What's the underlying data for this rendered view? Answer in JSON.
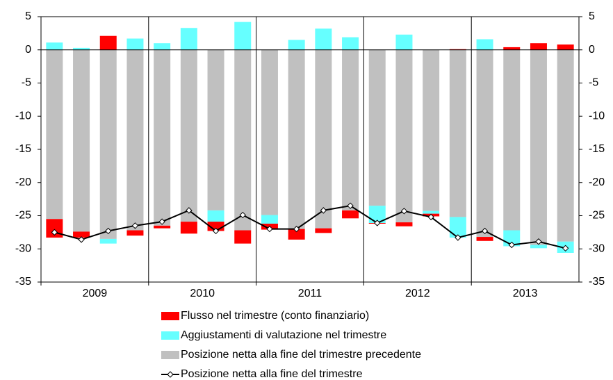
{
  "chart_data": {
    "type": "bar",
    "groups": [
      "2009",
      "2010",
      "2011",
      "2012",
      "2013"
    ],
    "series": [
      {
        "name": "Flusso nel trimestre (conto finanziario)",
        "type": "bar",
        "color": "#ff0000",
        "values": [
          -2.8,
          -0.9,
          2.1,
          -0.8,
          -0.4,
          -1.8,
          -1.4,
          -2.0,
          -0.9,
          -1.6,
          -0.7,
          -1.2,
          -0.1,
          -0.6,
          -0.4,
          0.1,
          -0.6,
          0.4,
          1.0,
          0.8
        ]
      },
      {
        "name": "Aggiustamenti di valutazione nel trimestre",
        "type": "bar",
        "color": "#66ffff",
        "values": [
          1.1,
          0.3,
          -0.7,
          1.7,
          1.0,
          3.3,
          -1.7,
          4.2,
          -1.3,
          1.5,
          3.2,
          1.9,
          -2.6,
          2.3,
          -0.4,
          -3.1,
          1.6,
          -2.4,
          -0.5,
          -1.7
        ]
      },
      {
        "name": "Posizione netta alla fine del trimestre precedente",
        "type": "bar",
        "color": "#c0c0c0",
        "values": [
          -25.5,
          -27.4,
          -28.5,
          -27.2,
          -26.5,
          -25.9,
          -24.2,
          -27.2,
          -24.9,
          -27.0,
          -26.9,
          -24.2,
          -23.5,
          -26.0,
          -24.3,
          -25.2,
          -28.2,
          -27.2,
          -29.4,
          -28.9
        ]
      },
      {
        "name": "Posizione netta alla fine del trimestre",
        "type": "line",
        "color": "#000000",
        "values": [
          -27.5,
          -28.6,
          -27.3,
          -26.5,
          -25.9,
          -24.2,
          -27.3,
          -24.9,
          -27.0,
          -27.0,
          -24.2,
          -23.5,
          -26.1,
          -24.3,
          -25.2,
          -28.3,
          -27.3,
          -29.4,
          -28.9,
          -29.9
        ]
      }
    ],
    "ylim": [
      -35,
      5
    ],
    "yticks": [
      -35,
      -30,
      -25,
      -20,
      -15,
      -10,
      -5,
      0,
      5
    ],
    "y2lim": [
      -35,
      5
    ],
    "y2ticks": [
      -35,
      -30,
      -25,
      -20,
      -15,
      -10,
      -5,
      0,
      5
    ],
    "grid": false
  }
}
